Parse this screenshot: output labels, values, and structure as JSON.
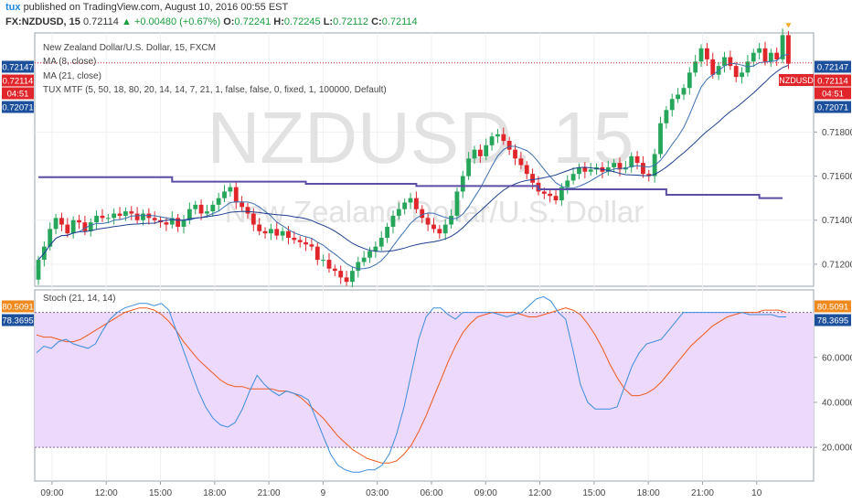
{
  "header": {
    "publisher": "tux",
    "published_text": "published on TradingView.com, August 10, 2016 00:55 EST",
    "symbol": "FX:NZDUSD, 15",
    "last": "0.72114",
    "change_icon": "▲",
    "change": "+0.00480 (+0.67%)",
    "open_key": "O:",
    "open": "0.72241",
    "high_key": "H:",
    "high": "0.72245",
    "low_key": "L:",
    "low": "0.72112",
    "close_key": "C:",
    "close": "0.72114"
  },
  "legend": {
    "title": "New Zealand Dollar/U.S. Dollar, 15, FXCM",
    "ma8": "MA (8, close)",
    "ma21": "MA (21, close)",
    "tux": "TUX MTF (5, 50, 18, 80, 20, 14, 14, 7, 21, 1, false, false, 0, fixed, 1, 100000, Default)",
    "stoch": "Stoch (21, 14, 14)"
  },
  "watermark": {
    "symbol": "NZDUSD, 15",
    "description": "New Zealand Dollar/U.S. Dollar"
  },
  "colors": {
    "up": "#26a65b",
    "down": "#e0252b",
    "ma8": "#3b6fb0",
    "ma21": "#1f3f8f",
    "tux": "#5b4ea5",
    "stoch_k": "#3a8ede",
    "stoch_d": "#f0591e",
    "stoch_fill": "#ecd9fb",
    "last_price": "#e0252b",
    "axis_badge": "#1c4f9c",
    "stoch_badge_d": "#f08a1e"
  },
  "chart_data": [
    {
      "type": "candlestick",
      "name": "NZDUSD, 15",
      "ylim": [
        0.711,
        0.7225
      ],
      "y_ticks": [
        "0.71200",
        "0.71400",
        "0.71600",
        "0.71800"
      ],
      "x_ticks": [
        "09:00",
        "12:00",
        "15:00",
        "18:00",
        "21:00",
        "9",
        "03:00",
        "06:00",
        "09:00",
        "12:00",
        "15:00",
        "18:00",
        "21:00",
        "10"
      ],
      "badges": {
        "high_marker": "0.72147",
        "last_price": "0.72114",
        "countdown": "04:51",
        "low_marker": "0.72071",
        "symbol_tag": "NZDUSD"
      },
      "closes": [
        0.7122,
        0.7128,
        0.7136,
        0.7141,
        0.7138,
        0.7134,
        0.714,
        0.7139,
        0.7135,
        0.7139,
        0.7142,
        0.7141,
        0.7141,
        0.7143,
        0.7142,
        0.7144,
        0.7143,
        0.714,
        0.7143,
        0.7141,
        0.714,
        0.7139,
        0.7138,
        0.7141,
        0.7137,
        0.714,
        0.7145,
        0.7147,
        0.7143,
        0.7144,
        0.7147,
        0.715,
        0.7153,
        0.7155,
        0.7148,
        0.7146,
        0.7143,
        0.7138,
        0.7135,
        0.7134,
        0.7136,
        0.7133,
        0.7135,
        0.7132,
        0.7131,
        0.713,
        0.7129,
        0.7128,
        0.7122,
        0.7122,
        0.7118,
        0.7117,
        0.7114,
        0.7112,
        0.7117,
        0.7121,
        0.7123,
        0.7126,
        0.7128,
        0.7132,
        0.7137,
        0.7142,
        0.7145,
        0.7148,
        0.715,
        0.7145,
        0.7141,
        0.7138,
        0.7136,
        0.7134,
        0.7138,
        0.7142,
        0.7153,
        0.716,
        0.7168,
        0.7172,
        0.7169,
        0.7174,
        0.7178,
        0.7179,
        0.7176,
        0.7172,
        0.7168,
        0.7165,
        0.7161,
        0.7157,
        0.7153,
        0.7152,
        0.7151,
        0.7149,
        0.7155,
        0.7158,
        0.7161,
        0.7164,
        0.7162,
        0.7163,
        0.7164,
        0.7162,
        0.7164,
        0.7166,
        0.7163,
        0.7164,
        0.7169,
        0.7166,
        0.7161,
        0.716,
        0.717,
        0.7184,
        0.719,
        0.7195,
        0.7197,
        0.72,
        0.7207,
        0.7212,
        0.7218,
        0.7213,
        0.7206,
        0.721,
        0.7214,
        0.721,
        0.7205,
        0.7207,
        0.7212,
        0.7216,
        0.7218,
        0.7212,
        0.7216,
        0.7213,
        0.7224,
        0.7211
      ],
      "ma8_label": "MA (8, close)",
      "ma21_label": "MA (21, close)",
      "tux_mtf_segments": [
        [
          0,
          0.71595
        ],
        [
          23,
          0.71575
        ],
        [
          46,
          0.71565
        ],
        [
          65,
          0.71555
        ],
        [
          86,
          0.7154
        ],
        [
          108,
          0.71515
        ],
        [
          124,
          0.715
        ],
        [
          128,
          0.715
        ]
      ]
    },
    {
      "type": "line",
      "name": "Stoch (21, 14, 14)",
      "ylim": [
        5,
        90
      ],
      "y_ticks": [
        "20.0000",
        "40.0000",
        "60.0000"
      ],
      "levels": [
        80,
        20
      ],
      "badges": {
        "d": "80.5091",
        "k": "78.3695"
      },
      "k": [
        62,
        65,
        64,
        67,
        68,
        66,
        65,
        64,
        66,
        72,
        77,
        80,
        82,
        83,
        84,
        84,
        83,
        84,
        81,
        72,
        63,
        54,
        45,
        38,
        33,
        30,
        29,
        31,
        37,
        45,
        52,
        48,
        45,
        43,
        45,
        44,
        43,
        41,
        33,
        25,
        17,
        12,
        10,
        9,
        9,
        10,
        10,
        12,
        17,
        26,
        38,
        53,
        68,
        78,
        82,
        82,
        79,
        77,
        80,
        80,
        80,
        80,
        80,
        79,
        78,
        79,
        80,
        83,
        86,
        87,
        85,
        80,
        77,
        63,
        48,
        40,
        37,
        37,
        37,
        38,
        47,
        56,
        62,
        66,
        67,
        68,
        72,
        76,
        80,
        80,
        80,
        80,
        80,
        80,
        80,
        80,
        80,
        79,
        79,
        79,
        79,
        78,
        78
      ],
      "d": [
        70,
        69,
        69,
        68,
        67,
        67,
        68,
        70,
        72,
        74,
        76,
        78,
        80,
        81,
        82,
        82,
        81,
        79,
        76,
        72,
        67,
        63,
        59,
        56,
        53,
        50,
        48,
        47,
        47,
        46,
        46,
        46,
        46,
        45,
        45,
        44,
        42,
        39,
        36,
        33,
        29,
        25,
        22,
        19,
        17,
        15,
        14,
        13,
        13,
        14,
        17,
        21,
        27,
        34,
        42,
        50,
        58,
        65,
        71,
        75,
        78,
        79,
        80,
        80,
        80,
        80,
        79,
        78,
        78,
        79,
        80,
        81,
        82,
        81,
        79,
        75,
        70,
        64,
        57,
        51,
        46,
        43,
        43,
        44,
        46,
        49,
        53,
        57,
        61,
        65,
        68,
        71,
        74,
        76,
        78,
        79,
        80,
        80,
        80,
        81,
        81,
        81,
        80
      ]
    }
  ]
}
